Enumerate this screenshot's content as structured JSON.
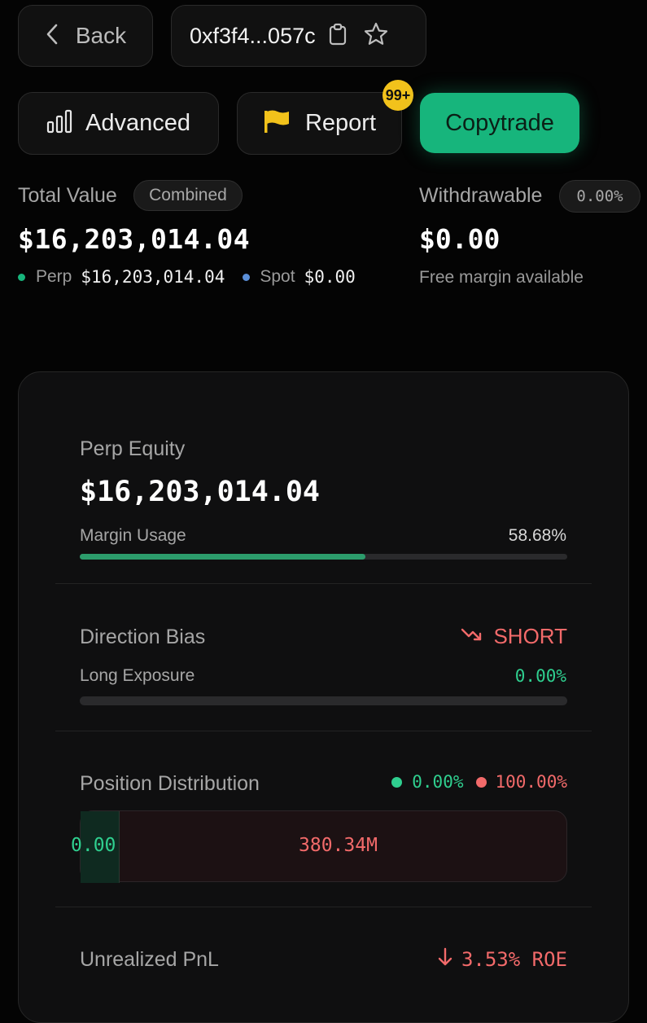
{
  "header": {
    "back_label": "Back",
    "address": "0xf3f4...057c"
  },
  "actions": {
    "advanced_label": "Advanced",
    "report_label": "Report",
    "report_badge": "99+",
    "copytrade_label": "Copytrade"
  },
  "summary": {
    "total_value_label": "Total Value",
    "combined_label": "Combined",
    "total_value": "$16,203,014.04",
    "perp_label": "Perp",
    "perp_value": "$16,203,014.04",
    "spot_label": "Spot",
    "spot_value": "$0.00",
    "withdrawable_label": "Withdrawable",
    "withdrawable_pct": "0.00%",
    "withdrawable_value": "$0.00",
    "free_margin_label": "Free margin available"
  },
  "card": {
    "perp_equity_label": "Perp Equity",
    "perp_equity_value": "$16,203,014.04",
    "margin_usage_label": "Margin Usage",
    "margin_usage_value": "58.68%",
    "margin_usage_fraction": 0.5868,
    "direction_bias_label": "Direction Bias",
    "direction_bias_value": "SHORT",
    "long_exposure_label": "Long Exposure",
    "long_exposure_value": "0.00%",
    "long_exposure_fraction": 0,
    "position_distribution_label": "Position Distribution",
    "long_pct": "0.00%",
    "short_pct": "100.00%",
    "long_amount": "0.00",
    "short_amount": "380.34M",
    "unrealized_pnl_label": "Unrealized PnL",
    "roe_value": "3.53% ROE"
  },
  "colors": {
    "accent_green": "#17b57c",
    "short_red": "#f26a6a",
    "badge_yellow": "#f2c21b",
    "spot_blue": "#5b8fd8"
  }
}
